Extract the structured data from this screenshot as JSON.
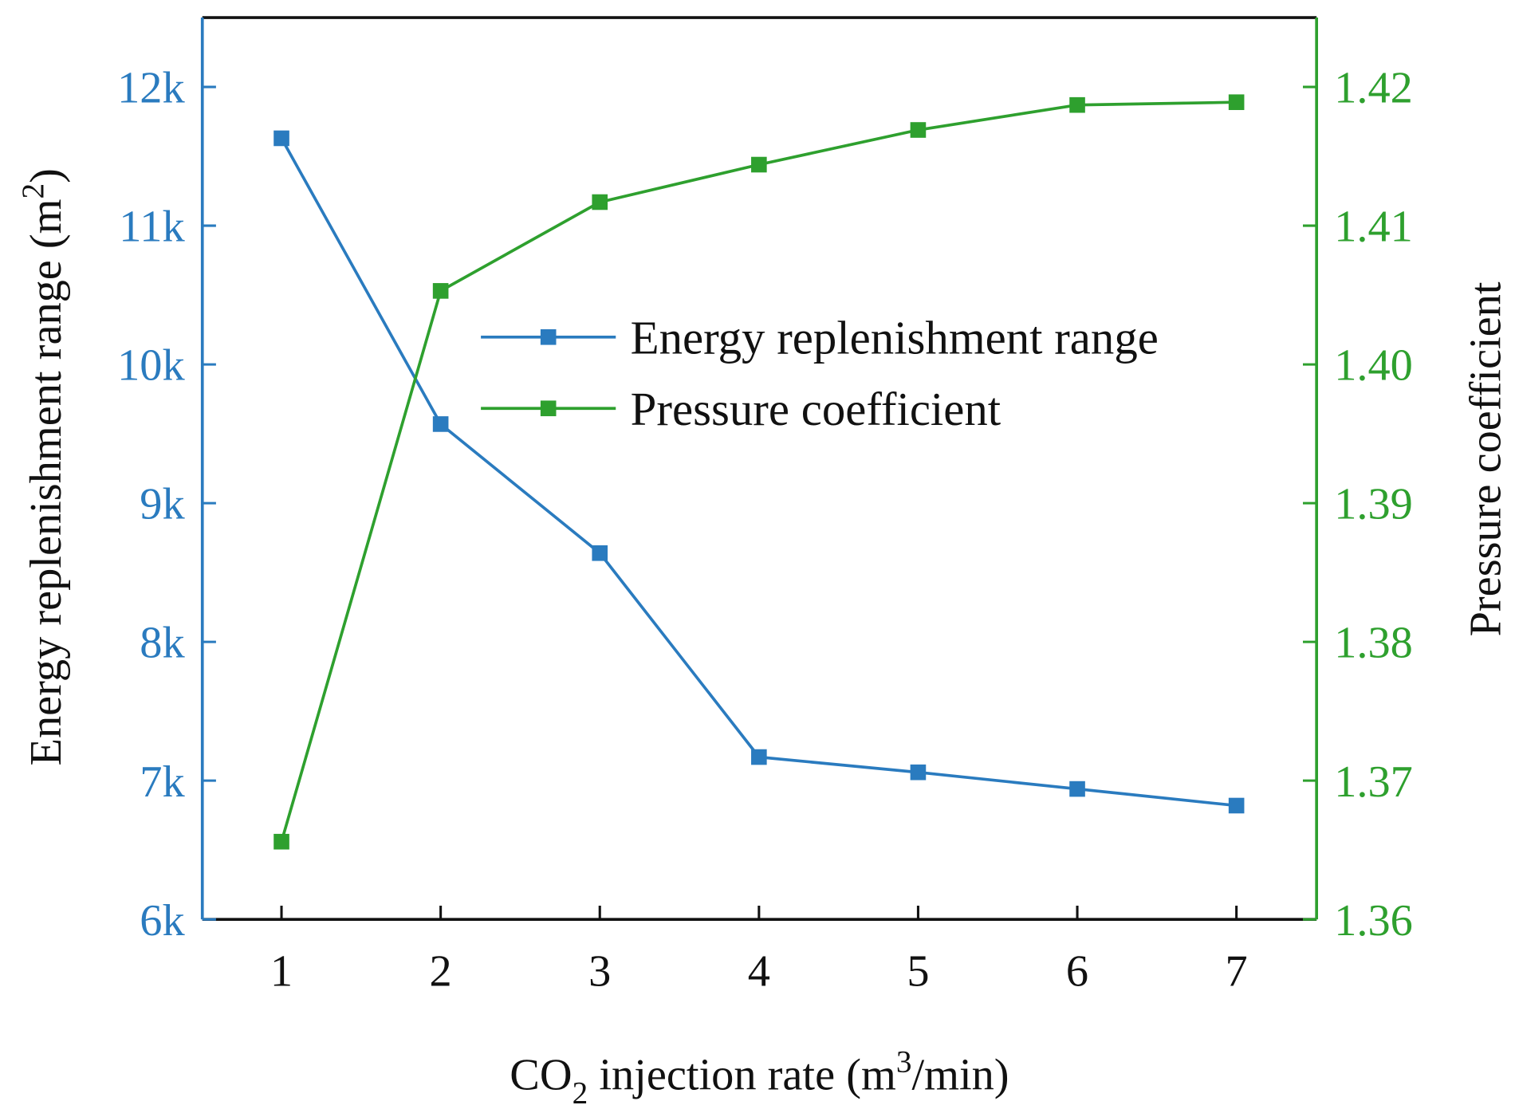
{
  "chart_data": {
    "type": "line",
    "x": [
      1,
      2,
      3,
      4,
      5,
      6,
      7
    ],
    "xlabel": {
      "pre": "CO",
      "sub": "2",
      "mid": " injection rate (m",
      "sup": "3",
      "post": "/min)"
    },
    "ylabel_left": {
      "main": "Energy replenishment range (m",
      "sup": "2",
      "post": ")"
    },
    "ylabel_right": "Pressure coefficient",
    "xlim": [
      0.5,
      7.5
    ],
    "ylim_left": [
      6000,
      12500
    ],
    "ylim_right": [
      1.36,
      1.425
    ],
    "xticks": [
      "1",
      "2",
      "3",
      "4",
      "5",
      "6",
      "7"
    ],
    "yticks_left": [
      {
        "v": 6000,
        "t": "6k"
      },
      {
        "v": 7000,
        "t": "7k"
      },
      {
        "v": 8000,
        "t": "8k"
      },
      {
        "v": 9000,
        "t": "9k"
      },
      {
        "v": 10000,
        "t": "10k"
      },
      {
        "v": 11000,
        "t": "11k"
      },
      {
        "v": 12000,
        "t": "12k"
      }
    ],
    "yticks_right": [
      {
        "v": 1.36,
        "t": "1.36"
      },
      {
        "v": 1.37,
        "t": "1.37"
      },
      {
        "v": 1.38,
        "t": "1.38"
      },
      {
        "v": 1.39,
        "t": "1.39"
      },
      {
        "v": 1.4,
        "t": "1.40"
      },
      {
        "v": 1.41,
        "t": "1.41"
      },
      {
        "v": 1.42,
        "t": "1.42"
      }
    ],
    "series": [
      {
        "name": "Energy replenishment range",
        "axis": "left",
        "color": "#2a7bbf",
        "marker": "square",
        "values": [
          11630,
          9570,
          8640,
          7170,
          7060,
          6940,
          6820
        ]
      },
      {
        "name": "Pressure coefficient",
        "axis": "right",
        "color": "#2ea02e",
        "marker": "square",
        "values": [
          1.3656,
          1.4053,
          1.4117,
          1.4144,
          1.4169,
          1.4187,
          1.4189
        ]
      }
    ],
    "legend": "center-right",
    "grid": false
  }
}
